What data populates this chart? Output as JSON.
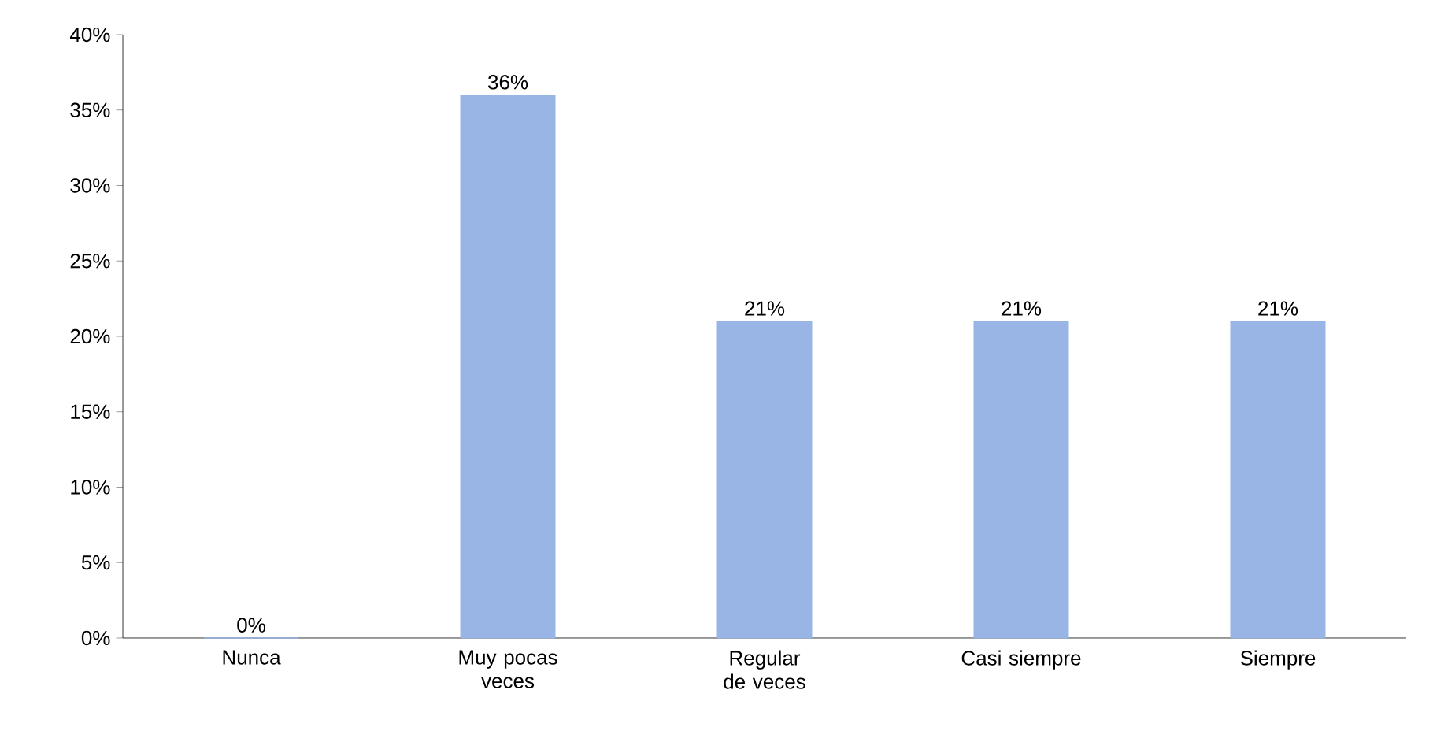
{
  "chart_data": {
    "type": "bar",
    "categories": [
      "Nunca",
      "Muy pocas veces",
      "Regular de veces",
      "Casi siempre",
      "Siempre"
    ],
    "values": [
      0,
      36,
      21,
      21,
      21
    ],
    "value_labels": [
      "0%",
      "36%",
      "21%",
      "21%",
      "21%"
    ],
    "color": "#98b5e6",
    "ylim": [
      0,
      40
    ],
    "yticks": [
      {
        "value": 0,
        "label": "0%"
      },
      {
        "value": 5,
        "label": "5%"
      },
      {
        "value": 10,
        "label": "10%"
      },
      {
        "value": 15,
        "label": "15%"
      },
      {
        "value": 20,
        "label": "20%"
      },
      {
        "value": 25,
        "label": "25%"
      },
      {
        "value": 30,
        "label": "30%"
      },
      {
        "value": 35,
        "label": "35%"
      },
      {
        "value": 40,
        "label": "40%"
      }
    ],
    "grid": false
  }
}
